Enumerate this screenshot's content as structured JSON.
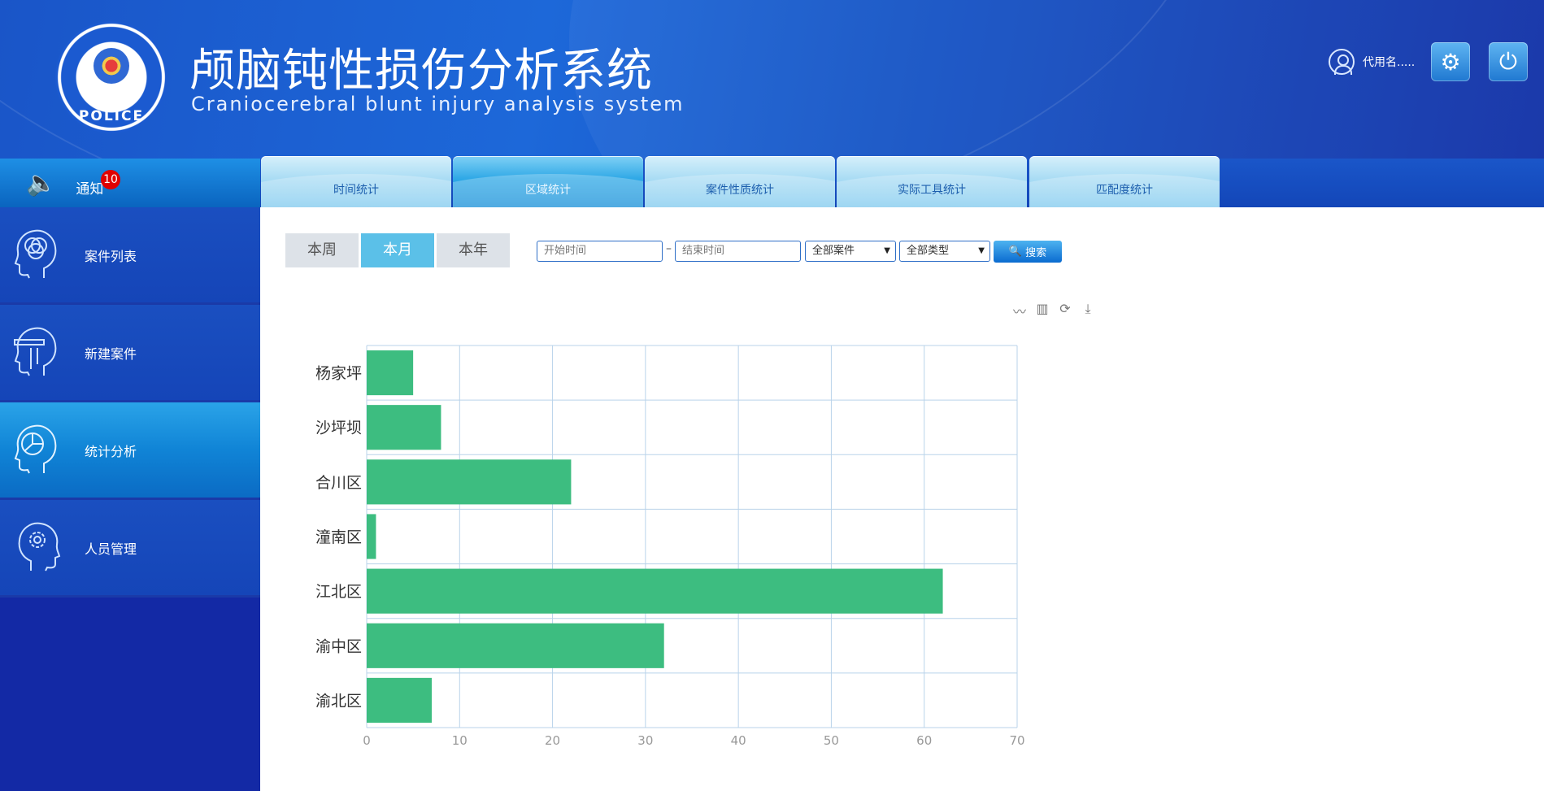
{
  "header": {
    "logo_text": "POLICE",
    "title_cn": "颅脑钝性损伤分析系统",
    "title_en": "Craniocerebral blunt injury analysis system",
    "user_name": "代用名.....",
    "icons": {
      "user": "user-icon",
      "settings": "gear-icon",
      "power": "power-icon"
    }
  },
  "notice": {
    "label": "通知",
    "badge": "10",
    "icon": "speaker-icon"
  },
  "tabs": [
    {
      "label": "时间统计",
      "active": false
    },
    {
      "label": "区域统计",
      "active": true
    },
    {
      "label": "案件性质统计",
      "active": false
    },
    {
      "label": "实际工具统计",
      "active": false
    },
    {
      "label": "匹配度统计",
      "active": false
    }
  ],
  "sidebar": {
    "items": [
      {
        "label": "案件列表",
        "icon": "head-circles-icon",
        "active": false
      },
      {
        "label": "新建案件",
        "icon": "head-pencil-icon",
        "active": false
      },
      {
        "label": "统计分析",
        "icon": "head-chart-icon",
        "active": true
      },
      {
        "label": "人员管理",
        "icon": "head-gear-icon",
        "active": false
      }
    ]
  },
  "filters": {
    "period_buttons": [
      {
        "label": "本周",
        "active": false
      },
      {
        "label": "本月",
        "active": true
      },
      {
        "label": "本年",
        "active": false
      }
    ],
    "start_placeholder": "开始时间",
    "end_placeholder": "结束时间",
    "case_select": "全部案件",
    "type_select": "全部类型",
    "search_label": "搜索"
  },
  "toolbox": [
    "line-chart-icon",
    "bar-chart-icon",
    "refresh-icon",
    "download-icon"
  ],
  "chart_data": {
    "type": "bar",
    "orientation": "horizontal",
    "categories": [
      "杨家坪",
      "沙坪坝",
      "合川区",
      "潼南区",
      "江北区",
      "渝中区",
      "渝北区"
    ],
    "values": [
      5,
      8,
      22,
      1,
      62,
      32,
      7
    ],
    "xlim": [
      0,
      70
    ],
    "x_ticks": [
      0,
      10,
      20,
      30,
      40,
      50,
      60,
      70
    ],
    "grid": true,
    "bar_color": "#3dbd80"
  }
}
